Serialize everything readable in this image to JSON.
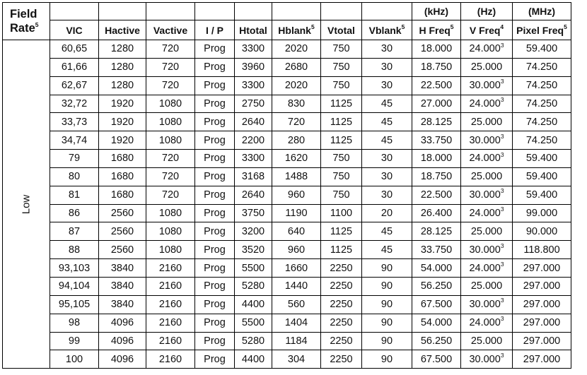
{
  "header": {
    "field_rate_line1": "Field",
    "field_rate_line2": "Rate",
    "field_rate_sup": "5",
    "units": {
      "h_freq": "(kHz)",
      "v_freq": "(Hz)",
      "pixel_freq": "(MHz)"
    },
    "columns": [
      {
        "key": "vic",
        "label": "VIC",
        "sup": ""
      },
      {
        "key": "hactive",
        "label": "Hactive",
        "sup": ""
      },
      {
        "key": "vactive",
        "label": "Vactive",
        "sup": ""
      },
      {
        "key": "ip",
        "label": "I / P",
        "sup": ""
      },
      {
        "key": "htotal",
        "label": "Htotal",
        "sup": ""
      },
      {
        "key": "hblank",
        "label": "Hblank",
        "sup": "5"
      },
      {
        "key": "vtotal",
        "label": "Vtotal",
        "sup": ""
      },
      {
        "key": "vblank",
        "label": "Vblank",
        "sup": "5"
      },
      {
        "key": "hfreq",
        "label": "H Freq",
        "sup": "5"
      },
      {
        "key": "vfreq",
        "label": "V Freq",
        "sup": "4"
      },
      {
        "key": "pixfreq",
        "label": "Pixel Freq",
        "sup": "5"
      }
    ]
  },
  "group_label": "Low",
  "rows": [
    {
      "vic": "60,65",
      "hactive": "1280",
      "vactive": "720",
      "ip": "Prog",
      "htotal": "3300",
      "hblank": "2020",
      "vtotal": "750",
      "vblank": "30",
      "hfreq": "18.000",
      "vfreq": "24.000",
      "vfreq_sup": "3",
      "pixfreq": "59.400"
    },
    {
      "vic": "61,66",
      "hactive": "1280",
      "vactive": "720",
      "ip": "Prog",
      "htotal": "3960",
      "hblank": "2680",
      "vtotal": "750",
      "vblank": "30",
      "hfreq": "18.750",
      "vfreq": "25.000",
      "vfreq_sup": "",
      "pixfreq": "74.250"
    },
    {
      "vic": "62,67",
      "hactive": "1280",
      "vactive": "720",
      "ip": "Prog",
      "htotal": "3300",
      "hblank": "2020",
      "vtotal": "750",
      "vblank": "30",
      "hfreq": "22.500",
      "vfreq": "30.000",
      "vfreq_sup": "3",
      "pixfreq": "74.250"
    },
    {
      "vic": "32,72",
      "hactive": "1920",
      "vactive": "1080",
      "ip": "Prog",
      "htotal": "2750",
      "hblank": "830",
      "vtotal": "1125",
      "vblank": "45",
      "hfreq": "27.000",
      "vfreq": "24.000",
      "vfreq_sup": "3",
      "pixfreq": "74.250"
    },
    {
      "vic": "33,73",
      "hactive": "1920",
      "vactive": "1080",
      "ip": "Prog",
      "htotal": "2640",
      "hblank": "720",
      "vtotal": "1125",
      "vblank": "45",
      "hfreq": "28.125",
      "vfreq": "25.000",
      "vfreq_sup": "",
      "pixfreq": "74.250"
    },
    {
      "vic": "34,74",
      "hactive": "1920",
      "vactive": "1080",
      "ip": "Prog",
      "htotal": "2200",
      "hblank": "280",
      "vtotal": "1125",
      "vblank": "45",
      "hfreq": "33.750",
      "vfreq": "30.000",
      "vfreq_sup": "3",
      "pixfreq": "74.250"
    },
    {
      "vic": "79",
      "hactive": "1680",
      "vactive": "720",
      "ip": "Prog",
      "htotal": "3300",
      "hblank": "1620",
      "vtotal": "750",
      "vblank": "30",
      "hfreq": "18.000",
      "vfreq": "24.000",
      "vfreq_sup": "3",
      "pixfreq": "59.400"
    },
    {
      "vic": "80",
      "hactive": "1680",
      "vactive": "720",
      "ip": "Prog",
      "htotal": "3168",
      "hblank": "1488",
      "vtotal": "750",
      "vblank": "30",
      "hfreq": "18.750",
      "vfreq": "25.000",
      "vfreq_sup": "",
      "pixfreq": "59.400"
    },
    {
      "vic": "81",
      "hactive": "1680",
      "vactive": "720",
      "ip": "Prog",
      "htotal": "2640",
      "hblank": "960",
      "vtotal": "750",
      "vblank": "30",
      "hfreq": "22.500",
      "vfreq": "30.000",
      "vfreq_sup": "3",
      "pixfreq": "59.400"
    },
    {
      "vic": "86",
      "hactive": "2560",
      "vactive": "1080",
      "ip": "Prog",
      "htotal": "3750",
      "hblank": "1190",
      "vtotal": "1100",
      "vblank": "20",
      "hfreq": "26.400",
      "vfreq": "24.000",
      "vfreq_sup": "3",
      "pixfreq": "99.000"
    },
    {
      "vic": "87",
      "hactive": "2560",
      "vactive": "1080",
      "ip": "Prog",
      "htotal": "3200",
      "hblank": "640",
      "vtotal": "1125",
      "vblank": "45",
      "hfreq": "28.125",
      "vfreq": "25.000",
      "vfreq_sup": "",
      "pixfreq": "90.000"
    },
    {
      "vic": "88",
      "hactive": "2560",
      "vactive": "1080",
      "ip": "Prog",
      "htotal": "3520",
      "hblank": "960",
      "vtotal": "1125",
      "vblank": "45",
      "hfreq": "33.750",
      "vfreq": "30.000",
      "vfreq_sup": "3",
      "pixfreq": "118.800"
    },
    {
      "vic": "93,103",
      "hactive": "3840",
      "vactive": "2160",
      "ip": "Prog",
      "htotal": "5500",
      "hblank": "1660",
      "vtotal": "2250",
      "vblank": "90",
      "hfreq": "54.000",
      "vfreq": "24.000",
      "vfreq_sup": "3",
      "pixfreq": "297.000"
    },
    {
      "vic": "94,104",
      "hactive": "3840",
      "vactive": "2160",
      "ip": "Prog",
      "htotal": "5280",
      "hblank": "1440",
      "vtotal": "2250",
      "vblank": "90",
      "hfreq": "56.250",
      "vfreq": "25.000",
      "vfreq_sup": "",
      "pixfreq": "297.000"
    },
    {
      "vic": "95,105",
      "hactive": "3840",
      "vactive": "2160",
      "ip": "Prog",
      "htotal": "4400",
      "hblank": "560",
      "vtotal": "2250",
      "vblank": "90",
      "hfreq": "67.500",
      "vfreq": "30.000",
      "vfreq_sup": "3",
      "pixfreq": "297.000"
    },
    {
      "vic": "98",
      "hactive": "4096",
      "vactive": "2160",
      "ip": "Prog",
      "htotal": "5500",
      "hblank": "1404",
      "vtotal": "2250",
      "vblank": "90",
      "hfreq": "54.000",
      "vfreq": "24.000",
      "vfreq_sup": "3",
      "pixfreq": "297.000"
    },
    {
      "vic": "99",
      "hactive": "4096",
      "vactive": "2160",
      "ip": "Prog",
      "htotal": "5280",
      "hblank": "1184",
      "vtotal": "2250",
      "vblank": "90",
      "hfreq": "56.250",
      "vfreq": "25.000",
      "vfreq_sup": "",
      "pixfreq": "297.000"
    },
    {
      "vic": "100",
      "hactive": "4096",
      "vactive": "2160",
      "ip": "Prog",
      "htotal": "4400",
      "hblank": "304",
      "vtotal": "2250",
      "vblank": "90",
      "hfreq": "67.500",
      "vfreq": "30.000",
      "vfreq_sup": "3",
      "pixfreq": "297.000"
    }
  ]
}
